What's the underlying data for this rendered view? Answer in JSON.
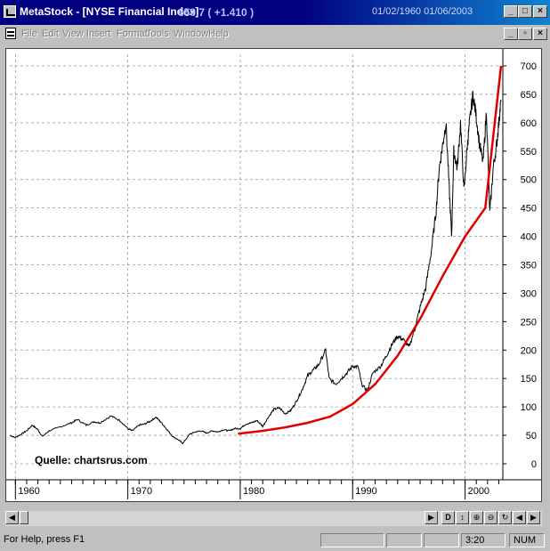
{
  "window": {
    "title": "MetaStock - [NYSE Financial Index]",
    "quote": "659.7 ( +1.410 )",
    "date_range": "01/02/1960   01/06/2003"
  },
  "menu": [
    "File",
    "Edit",
    "View",
    "Insert",
    "Format",
    "Tools",
    "Window",
    "Help"
  ],
  "chart": {
    "source_label": "Quelle: chartsrus.com",
    "y_ticks": [
      "0",
      "50",
      "100",
      "150",
      "200",
      "250",
      "300",
      "350",
      "400",
      "450",
      "500",
      "550",
      "600",
      "650",
      "700"
    ],
    "x_ticks": [
      "1960",
      "1970",
      "1980",
      "1990",
      "2000"
    ],
    "colors": {
      "price": "#000000",
      "trend": "#e00000",
      "grid": "#9a9a9a"
    }
  },
  "chart_data": {
    "type": "line",
    "ylim": [
      0,
      720
    ],
    "xlim": [
      1959.5,
      2003.2
    ],
    "series": [
      {
        "x": [
          1959.5,
          1960.0,
          1960.5,
          1961.0,
          1961.5,
          1962.0,
          1962.4,
          1963.0,
          1964.0,
          1965.0,
          1965.5,
          1966.3,
          1967.0,
          1967.5,
          1968.5,
          1969.3,
          1970.0,
          1970.4,
          1971.0,
          1971.5,
          1972.0,
          1972.5,
          1973.0,
          1973.5,
          1974.0,
          1974.5,
          1974.9,
          1975.5,
          1976.0,
          1976.5,
          1977.0,
          1977.5,
          1978.0,
          1978.5,
          1979.0,
          1979.5,
          1980.0,
          1980.5,
          1981.0,
          1981.5,
          1982.0,
          1982.5,
          1983.0,
          1983.5,
          1984.0,
          1984.5,
          1985.0,
          1985.5,
          1986.0,
          1986.5,
          1987.0,
          1987.6,
          1987.9,
          1988.5,
          1989.0,
          1989.5,
          1990.0,
          1990.5,
          1990.8,
          1991.3,
          1991.8,
          1992.5,
          1993.0,
          1993.5,
          1994.0,
          1994.5,
          1995.0,
          1995.5,
          1996.0,
          1996.5,
          1997.0,
          1997.4,
          1997.7,
          1998.0,
          1998.3,
          1998.6,
          1998.8,
          1999.0,
          1999.3,
          1999.6,
          1999.9,
          2000.2,
          2000.4,
          2000.7,
          2001.0,
          2001.3,
          2001.6,
          2001.9,
          2002.2,
          2002.5,
          2002.8,
          2003.0,
          2003.2
        ],
        "values": [
          50,
          46,
          52,
          58,
          68,
          60,
          48,
          58,
          65,
          72,
          78,
          68,
          74,
          72,
          84,
          76,
          62,
          58,
          68,
          70,
          75,
          82,
          72,
          60,
          48,
          42,
          36,
          52,
          56,
          58,
          54,
          58,
          56,
          60,
          58,
          62,
          62,
          70,
          72,
          76,
          66,
          82,
          96,
          98,
          88,
          94,
          110,
          130,
          155,
          165,
          175,
          200,
          150,
          140,
          150,
          160,
          172,
          170,
          140,
          128,
          160,
          172,
          190,
          210,
          225,
          218,
          205,
          235,
          275,
          310,
          375,
          440,
          520,
          560,
          600,
          480,
          400,
          550,
          520,
          600,
          480,
          560,
          600,
          650,
          610,
          560,
          530,
          620,
          440,
          520,
          560,
          600,
          640
        ]
      },
      {
        "x": [
          1979.8,
          1982,
          1984,
          1986,
          1988,
          1990,
          1992,
          1994,
          1996,
          1998,
          2000,
          2001.8,
          2003.2
        ],
        "values": [
          53,
          58,
          64,
          72,
          83,
          105,
          140,
          190,
          255,
          330,
          400,
          450,
          700
        ]
      }
    ]
  }
}
